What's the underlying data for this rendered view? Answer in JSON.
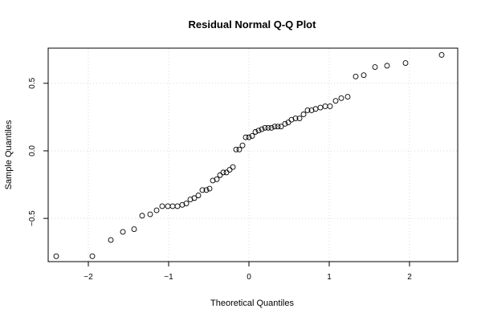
{
  "chart_data": {
    "type": "scatter",
    "title": "Residual Normal Q-Q Plot",
    "xlabel": "Theoretical Quantiles",
    "ylabel": "Sample Quantiles",
    "xlim": [
      -2.5,
      2.6
    ],
    "ylim": [
      -0.82,
      0.76
    ],
    "xticks": [
      -2,
      -1,
      0,
      1,
      2
    ],
    "xtick_labels": [
      "−2",
      "−1",
      "0",
      "1",
      "2"
    ],
    "yticks": [
      -0.5,
      0.0,
      0.5
    ],
    "ytick_labels": [
      "−0.5",
      "0.0",
      "0.5"
    ],
    "grid": true,
    "marker": "open-circle",
    "points": [
      [
        -2.4,
        -0.78
      ],
      [
        -1.95,
        -0.78
      ],
      [
        -1.72,
        -0.66
      ],
      [
        -1.57,
        -0.6
      ],
      [
        -1.43,
        -0.58
      ],
      [
        -1.33,
        -0.48
      ],
      [
        -1.23,
        -0.47
      ],
      [
        -1.15,
        -0.44
      ],
      [
        -1.08,
        -0.41
      ],
      [
        -1.01,
        -0.41
      ],
      [
        -0.95,
        -0.41
      ],
      [
        -0.89,
        -0.41
      ],
      [
        -0.83,
        -0.4
      ],
      [
        -0.78,
        -0.39
      ],
      [
        -0.73,
        -0.36
      ],
      [
        -0.68,
        -0.35
      ],
      [
        -0.63,
        -0.33
      ],
      [
        -0.58,
        -0.29
      ],
      [
        -0.53,
        -0.29
      ],
      [
        -0.49,
        -0.28
      ],
      [
        -0.45,
        -0.22
      ],
      [
        -0.4,
        -0.21
      ],
      [
        -0.36,
        -0.18
      ],
      [
        -0.32,
        -0.16
      ],
      [
        -0.28,
        -0.16
      ],
      [
        -0.24,
        -0.14
      ],
      [
        -0.2,
        -0.12
      ],
      [
        -0.16,
        0.01
      ],
      [
        -0.12,
        0.01
      ],
      [
        -0.08,
        0.04
      ],
      [
        -0.04,
        0.1
      ],
      [
        0.0,
        0.1
      ],
      [
        0.04,
        0.11
      ],
      [
        0.08,
        0.14
      ],
      [
        0.12,
        0.15
      ],
      [
        0.16,
        0.16
      ],
      [
        0.2,
        0.17
      ],
      [
        0.24,
        0.17
      ],
      [
        0.28,
        0.17
      ],
      [
        0.32,
        0.18
      ],
      [
        0.36,
        0.18
      ],
      [
        0.4,
        0.18
      ],
      [
        0.45,
        0.2
      ],
      [
        0.49,
        0.21
      ],
      [
        0.53,
        0.23
      ],
      [
        0.58,
        0.24
      ],
      [
        0.63,
        0.24
      ],
      [
        0.68,
        0.27
      ],
      [
        0.73,
        0.3
      ],
      [
        0.78,
        0.3
      ],
      [
        0.83,
        0.31
      ],
      [
        0.89,
        0.32
      ],
      [
        0.95,
        0.33
      ],
      [
        1.01,
        0.33
      ],
      [
        1.08,
        0.37
      ],
      [
        1.15,
        0.39
      ],
      [
        1.23,
        0.4
      ],
      [
        1.33,
        0.55
      ],
      [
        1.43,
        0.56
      ],
      [
        1.57,
        0.62
      ],
      [
        1.72,
        0.63
      ],
      [
        1.95,
        0.65
      ],
      [
        2.4,
        0.71
      ]
    ]
  }
}
